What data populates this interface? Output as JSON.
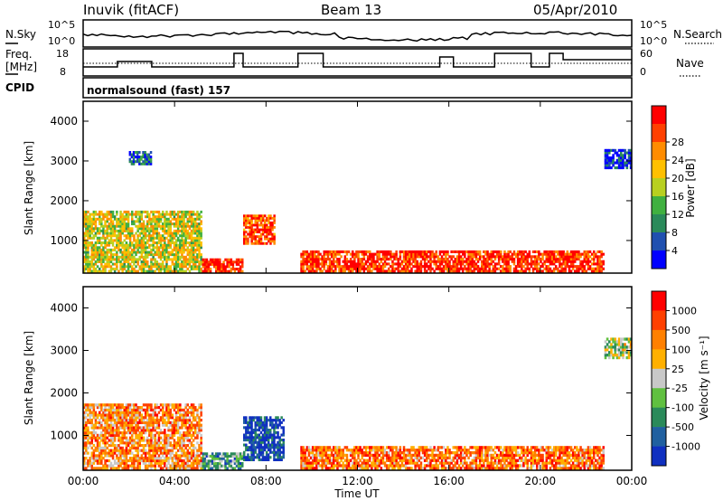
{
  "header": {
    "station": "Inuvik (fitACF)",
    "beam": "Beam 13",
    "date": "05/Apr/2010"
  },
  "strips": {
    "nsky": {
      "label": "N.Sky",
      "right_label": "N.Search",
      "left_ticks": [
        "10^5",
        "10^0"
      ],
      "right_ticks": [
        "10^5",
        "10^0"
      ]
    },
    "freq": {
      "label_line1": "Freq.",
      "label_line2": "[MHz]",
      "left_ticks": [
        "18",
        "8"
      ],
      "right_ticks": [
        "60",
        "0"
      ],
      "right_label": "Nave"
    },
    "cpid": {
      "label": "CPID",
      "value": "normalsound (fast) 157"
    }
  },
  "chart_data": [
    {
      "type": "heatmap",
      "name": "power",
      "xlabel": "",
      "ylabel": "Slant Range [km]",
      "x_tick_labels": [
        "00:00",
        "04:00",
        "08:00",
        "12:00",
        "16:00",
        "20:00",
        "00:00"
      ],
      "y_ticks": [
        1000,
        2000,
        3000,
        4000
      ],
      "ylim": [
        180,
        4500
      ],
      "xlim_hours": [
        0,
        24
      ],
      "colorbar": {
        "label": "Power [dB]",
        "tick_labels": [
          "4",
          "8",
          "12",
          "16",
          "20",
          "24",
          "28"
        ],
        "colors": [
          "#0000ff",
          "#2050b0",
          "#2a8a5a",
          "#40b040",
          "#b8d020",
          "#ffc000",
          "#ff8c00",
          "#ff4000",
          "#ff0000"
        ]
      },
      "regions": [
        {
          "t": [
            0.0,
            5.2
          ],
          "r": [
            200,
            1750
          ],
          "level": 0.55
        },
        {
          "t": [
            5.2,
            7.0
          ],
          "r": [
            200,
            550
          ],
          "level": 0.95
        },
        {
          "t": [
            7.0,
            8.4
          ],
          "r": [
            900,
            1650
          ],
          "level": 0.85
        },
        {
          "t": [
            9.5,
            22.8
          ],
          "r": [
            200,
            750
          ],
          "level": 0.9
        },
        {
          "t": [
            2.0,
            3.0
          ],
          "r": [
            2900,
            3250
          ],
          "level": 0.2
        },
        {
          "t": [
            22.8,
            24.0
          ],
          "r": [
            2800,
            3300
          ],
          "level": 0.1
        }
      ]
    },
    {
      "type": "heatmap",
      "name": "velocity",
      "xlabel": "Time UT",
      "ylabel": "Slant Range [km]",
      "x_tick_labels": [
        "00:00",
        "04:00",
        "08:00",
        "12:00",
        "16:00",
        "20:00",
        "00:00"
      ],
      "y_ticks": [
        1000,
        2000,
        3000,
        4000
      ],
      "ylim": [
        180,
        4500
      ],
      "xlim_hours": [
        0,
        24
      ],
      "colorbar": {
        "label": "Velocity [m s⁻¹]",
        "tick_labels": [
          "1000",
          "500",
          "100",
          "25",
          "-25",
          "-100",
          "-500",
          "-1000"
        ],
        "colors": [
          "#1030c0",
          "#2060a0",
          "#2a8a5a",
          "#60c040",
          "#c8c8c8",
          "#ffb000",
          "#ff8000",
          "#ff4000",
          "#ff0000"
        ]
      },
      "regions": [
        {
          "t": [
            0.0,
            5.2
          ],
          "r": [
            200,
            1750
          ],
          "level": 0.7
        },
        {
          "t": [
            5.2,
            7.0
          ],
          "r": [
            200,
            600
          ],
          "level": 0.3
        },
        {
          "t": [
            7.0,
            8.8
          ],
          "r": [
            400,
            1450
          ],
          "level": 0.1
        },
        {
          "t": [
            9.5,
            22.8
          ],
          "r": [
            200,
            750
          ],
          "level": 0.75
        },
        {
          "t": [
            22.8,
            24.0
          ],
          "r": [
            2800,
            3300
          ],
          "level": 0.45
        }
      ]
    }
  ],
  "colors": {
    "frame": "#000000",
    "background": "#ffffff"
  }
}
